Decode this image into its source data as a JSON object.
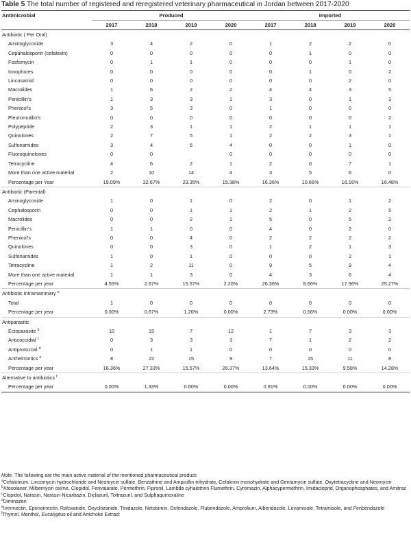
{
  "caption": {
    "label": "Table 5",
    "text": "The total number of registered and reregistered veterinary pharmaceutical in Jordan between 2017-2020"
  },
  "header": {
    "first_col": "Antimicrobial",
    "produced": "Produced",
    "imported": "Imported",
    "years": [
      "2017",
      "2018",
      "2019",
      "2020",
      "2017",
      "2018",
      "2019",
      "2020"
    ]
  },
  "rows": [
    {
      "type": "section",
      "label": "Antibiotic ( Per Oral)",
      "sup": ""
    },
    {
      "type": "item",
      "label": "Aminoglycoside",
      "sup": "",
      "values": [
        "3",
        "4",
        "2",
        "0",
        "1",
        "2",
        "2",
        "0"
      ]
    },
    {
      "type": "item",
      "label": "Cepahalosporin (cefalexin)",
      "sup": "",
      "values": [
        "0",
        "0",
        "0",
        "0",
        "0",
        "1",
        "0",
        "0"
      ]
    },
    {
      "type": "item",
      "label": "Fosfomycin",
      "sup": "",
      "values": [
        "0",
        "1",
        "1",
        "0",
        "0",
        "0",
        "1",
        "0"
      ]
    },
    {
      "type": "item",
      "label": "Ionophores",
      "sup": "",
      "values": [
        "0",
        "0",
        "0",
        "0",
        "0",
        "1",
        "0",
        "2"
      ]
    },
    {
      "type": "item",
      "label": "Lincosamid",
      "sup": "",
      "values": [
        "0",
        "0",
        "0",
        "0",
        "0",
        "0",
        "2",
        "0"
      ]
    },
    {
      "type": "item",
      "label": "Macrolides",
      "sup": "",
      "values": [
        "1",
        "6",
        "2",
        "2",
        "4",
        "4",
        "3",
        "5"
      ]
    },
    {
      "type": "item",
      "label": "Penicillin's",
      "sup": "",
      "values": [
        "1",
        "3",
        "3",
        "1",
        "3",
        "0",
        "1",
        "3"
      ]
    },
    {
      "type": "item",
      "label": "Phenicol's",
      "sup": "",
      "values": [
        "3",
        "5",
        "3",
        "0",
        "1",
        "0",
        "0",
        "0"
      ]
    },
    {
      "type": "item",
      "label": "Pleuromutilin's",
      "sup": "",
      "values": [
        "0",
        "0",
        "0",
        "0",
        "0",
        "0",
        "0",
        "2"
      ]
    },
    {
      "type": "item",
      "label": "Polypeptide",
      "sup": "",
      "values": [
        "2",
        "3",
        "1",
        "1",
        "2",
        "1",
        "1",
        "1"
      ]
    },
    {
      "type": "item",
      "label": "Quinolones",
      "sup": "",
      "values": [
        "2",
        "7",
        "5",
        "1",
        "2",
        "2",
        "3",
        "1"
      ]
    },
    {
      "type": "item",
      "label": "Sulfonamides",
      "sup": "",
      "values": [
        "3",
        "4",
        "6",
        "4",
        "0",
        "0",
        "1",
        "0"
      ]
    },
    {
      "type": "item",
      "label": "Fluoroquinolones",
      "sup": "",
      "values": [
        "0",
        "0",
        "",
        "0",
        "0",
        "0",
        "0",
        "0"
      ]
    },
    {
      "type": "item",
      "label": "Tetracycline",
      "sup": "",
      "values": [
        "4",
        "6",
        "2",
        "1",
        "2",
        "0",
        "7",
        "1"
      ]
    },
    {
      "type": "item",
      "label": "More than one active material",
      "sup": "",
      "values": [
        "2",
        "10",
        "14",
        "4",
        "3",
        "5",
        "6",
        "0"
      ]
    },
    {
      "type": "pct",
      "label": "Percentage per Year",
      "sup": "",
      "values": [
        "19.09%",
        "32.67%",
        "23.35%",
        "15.38%",
        "16.36%",
        "10.66%",
        "16.16%",
        "16.48%"
      ]
    },
    {
      "type": "section",
      "label": "Antibiotic (Parental)",
      "sup": ""
    },
    {
      "type": "item",
      "label": "Aminoglycoside",
      "sup": "",
      "values": [
        "1",
        "0",
        "1",
        "0",
        "2",
        "0",
        "1",
        "2"
      ]
    },
    {
      "type": "item",
      "label": "Cephalosporin",
      "sup": "",
      "values": [
        "0",
        "0",
        "1",
        "1",
        "2",
        "1",
        "2",
        "5"
      ]
    },
    {
      "type": "item",
      "label": "Macrolides",
      "sup": "",
      "values": [
        "0",
        "0",
        "2",
        "1",
        "5",
        "0",
        "5",
        "2"
      ]
    },
    {
      "type": "item",
      "label": "Penicillin's",
      "sup": "",
      "values": [
        "1",
        "1",
        "0",
        "0",
        "4",
        "0",
        "2",
        "0"
      ]
    },
    {
      "type": "item",
      "label": "Phenicol's",
      "sup": "",
      "values": [
        "0",
        "0",
        "4",
        "0",
        "2",
        "2",
        "2",
        "2"
      ]
    },
    {
      "type": "item",
      "label": "Quinolones",
      "sup": "",
      "values": [
        "0",
        "0",
        "3",
        "0",
        "1",
        "2",
        "1",
        "3"
      ]
    },
    {
      "type": "item",
      "label": "Sulfonamides",
      "sup": "",
      "values": [
        "1",
        "0",
        "1",
        "0",
        "0",
        "0",
        "2",
        "1"
      ]
    },
    {
      "type": "item",
      "label": "Tetracycline",
      "sup": "",
      "values": [
        "1",
        "2",
        "11",
        "0",
        "9",
        "5",
        "9",
        "4"
      ]
    },
    {
      "type": "item",
      "label": "More than one active material",
      "sup": "",
      "values": [
        "1",
        "1",
        "3",
        "0",
        "4",
        "3",
        "6",
        "4"
      ]
    },
    {
      "type": "pct",
      "label": "Percentage per year",
      "sup": "",
      "values": [
        "4.55%",
        "2.67%",
        "15.57%",
        "2.20%",
        "26.36%",
        "8.66%",
        "17.96%",
        "25.27%"
      ]
    },
    {
      "type": "section",
      "label": "Antibiotic Intramammary",
      "sup": "a"
    },
    {
      "type": "item",
      "label": "Total",
      "sup": "",
      "values": [
        "1",
        "0",
        "0",
        "0",
        "0",
        "0",
        "0",
        "0"
      ]
    },
    {
      "type": "pct",
      "label": "Percentage per year",
      "sup": "",
      "values": [
        "0.00%",
        "0.67%",
        "1.20%",
        "0.00%",
        "2.73%",
        "0.66%",
        "0.00%",
        "0.00%"
      ]
    },
    {
      "type": "section",
      "label": "Antiparasitic",
      "sup": ""
    },
    {
      "type": "item",
      "label": "Ectoparasite",
      "sup": "b",
      "values": [
        "10",
        "15",
        "7",
        "12",
        "1",
        "7",
        "3",
        "3"
      ]
    },
    {
      "type": "item",
      "label": "Anticoccidial",
      "sup": "c",
      "values": [
        "0",
        "3",
        "3",
        "3",
        "7",
        "1",
        "2",
        "2"
      ]
    },
    {
      "type": "item",
      "label": "Antiprotozoal",
      "sup": "d",
      "values": [
        "0",
        "1",
        "1",
        "0",
        "0",
        "0",
        "0",
        "0"
      ]
    },
    {
      "type": "item",
      "label": "Anthelmintics",
      "sup": "e",
      "values": [
        "8",
        "22",
        "15",
        "9",
        "7",
        "15",
        "11",
        "8"
      ]
    },
    {
      "type": "pct",
      "label": "Percentage per year",
      "sup": "",
      "values": [
        "16.36%",
        "27.33%",
        "15.57%",
        "26.37%",
        "13.64%",
        "15.33%",
        "9.58%",
        "14.28%"
      ]
    },
    {
      "type": "section",
      "label": "Alternative to antibiotics",
      "sup": "f"
    },
    {
      "type": "pct",
      "label": "Percentage per year",
      "sup": "",
      "values": [
        "0.00%",
        "1.33%",
        "0.60%",
        "0.00%",
        "0.91%",
        "0.00%",
        "0.00%",
        "0.00%"
      ]
    }
  ],
  "notes": {
    "intro_label": "Note.",
    "intro": "The following are the main active material of the mentioned pharmaceutical product:",
    "items": [
      {
        "sup": "a",
        "text": "Cefalonium, Lincomycin hydrochloride and Neomycin sulfate, Benzathine and Ampicillin trihydrate, Cefalexin monohydrate and Gentamycin sulfate, Oxytetracycline and Neomycin"
      },
      {
        "sup": "b",
        "text": "Afoxolaner, Milbemycin oxime, Clopidol, Fenvalarate, Permethrin, Fipronil, Lambda cyhalothrin Flumethrin, Cyromazin, Alphacypermethrin, Imidacloprid, Organophosphates, and Amitraz"
      },
      {
        "sup": "c",
        "text": "Clopidol, Narasin, Narasin-Nicarbazin, Diclazuril, Toltrazuril, and Sulphaquinoxaline"
      },
      {
        "sup": "d",
        "text": "Diminazen"
      },
      {
        "sup": "e",
        "text": "Ivermectin, Eprinomectin, Rafoxanide, Oxyclozanide, Tinidazole, Netobimin, Oxfendazole, Flubendazole, Amprolium, Albendazole, Levamisole, Tetramisole, and Fenbendazole"
      },
      {
        "sup": "f",
        "text": "Thymol, Menthol, Eucalyptus oil and Artichoke Extract"
      }
    ]
  }
}
